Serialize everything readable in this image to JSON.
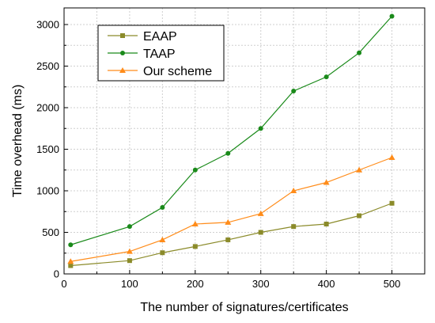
{
  "chart_data": {
    "type": "line",
    "title": "",
    "xlabel": "The number of signatures/certificates",
    "ylabel": "Time overhead (ms)",
    "xlim": [
      0,
      550
    ],
    "ylim": [
      0,
      3200
    ],
    "xticks": [
      0,
      100,
      200,
      300,
      400,
      500
    ],
    "yticks": [
      0,
      500,
      1000,
      1500,
      2000,
      2500,
      3000
    ],
    "grid": true,
    "legend_position": "top-left",
    "x": [
      10,
      100,
      150,
      200,
      250,
      300,
      350,
      400,
      450,
      500
    ],
    "series": [
      {
        "name": "EAAP",
        "color": "#8b8b2a",
        "marker": "square",
        "values": [
          100,
          160,
          255,
          330,
          410,
          500,
          570,
          600,
          700,
          850
        ]
      },
      {
        "name": "TAAP",
        "color": "#1a8a1a",
        "marker": "circle",
        "values": [
          350,
          570,
          800,
          1250,
          1450,
          1750,
          2200,
          2370,
          2660,
          3100
        ]
      },
      {
        "name": "Our scheme",
        "color": "#ff8c1a",
        "marker": "triangle",
        "values": [
          150,
          270,
          410,
          600,
          620,
          725,
          1000,
          1100,
          1250,
          1400
        ]
      }
    ]
  }
}
